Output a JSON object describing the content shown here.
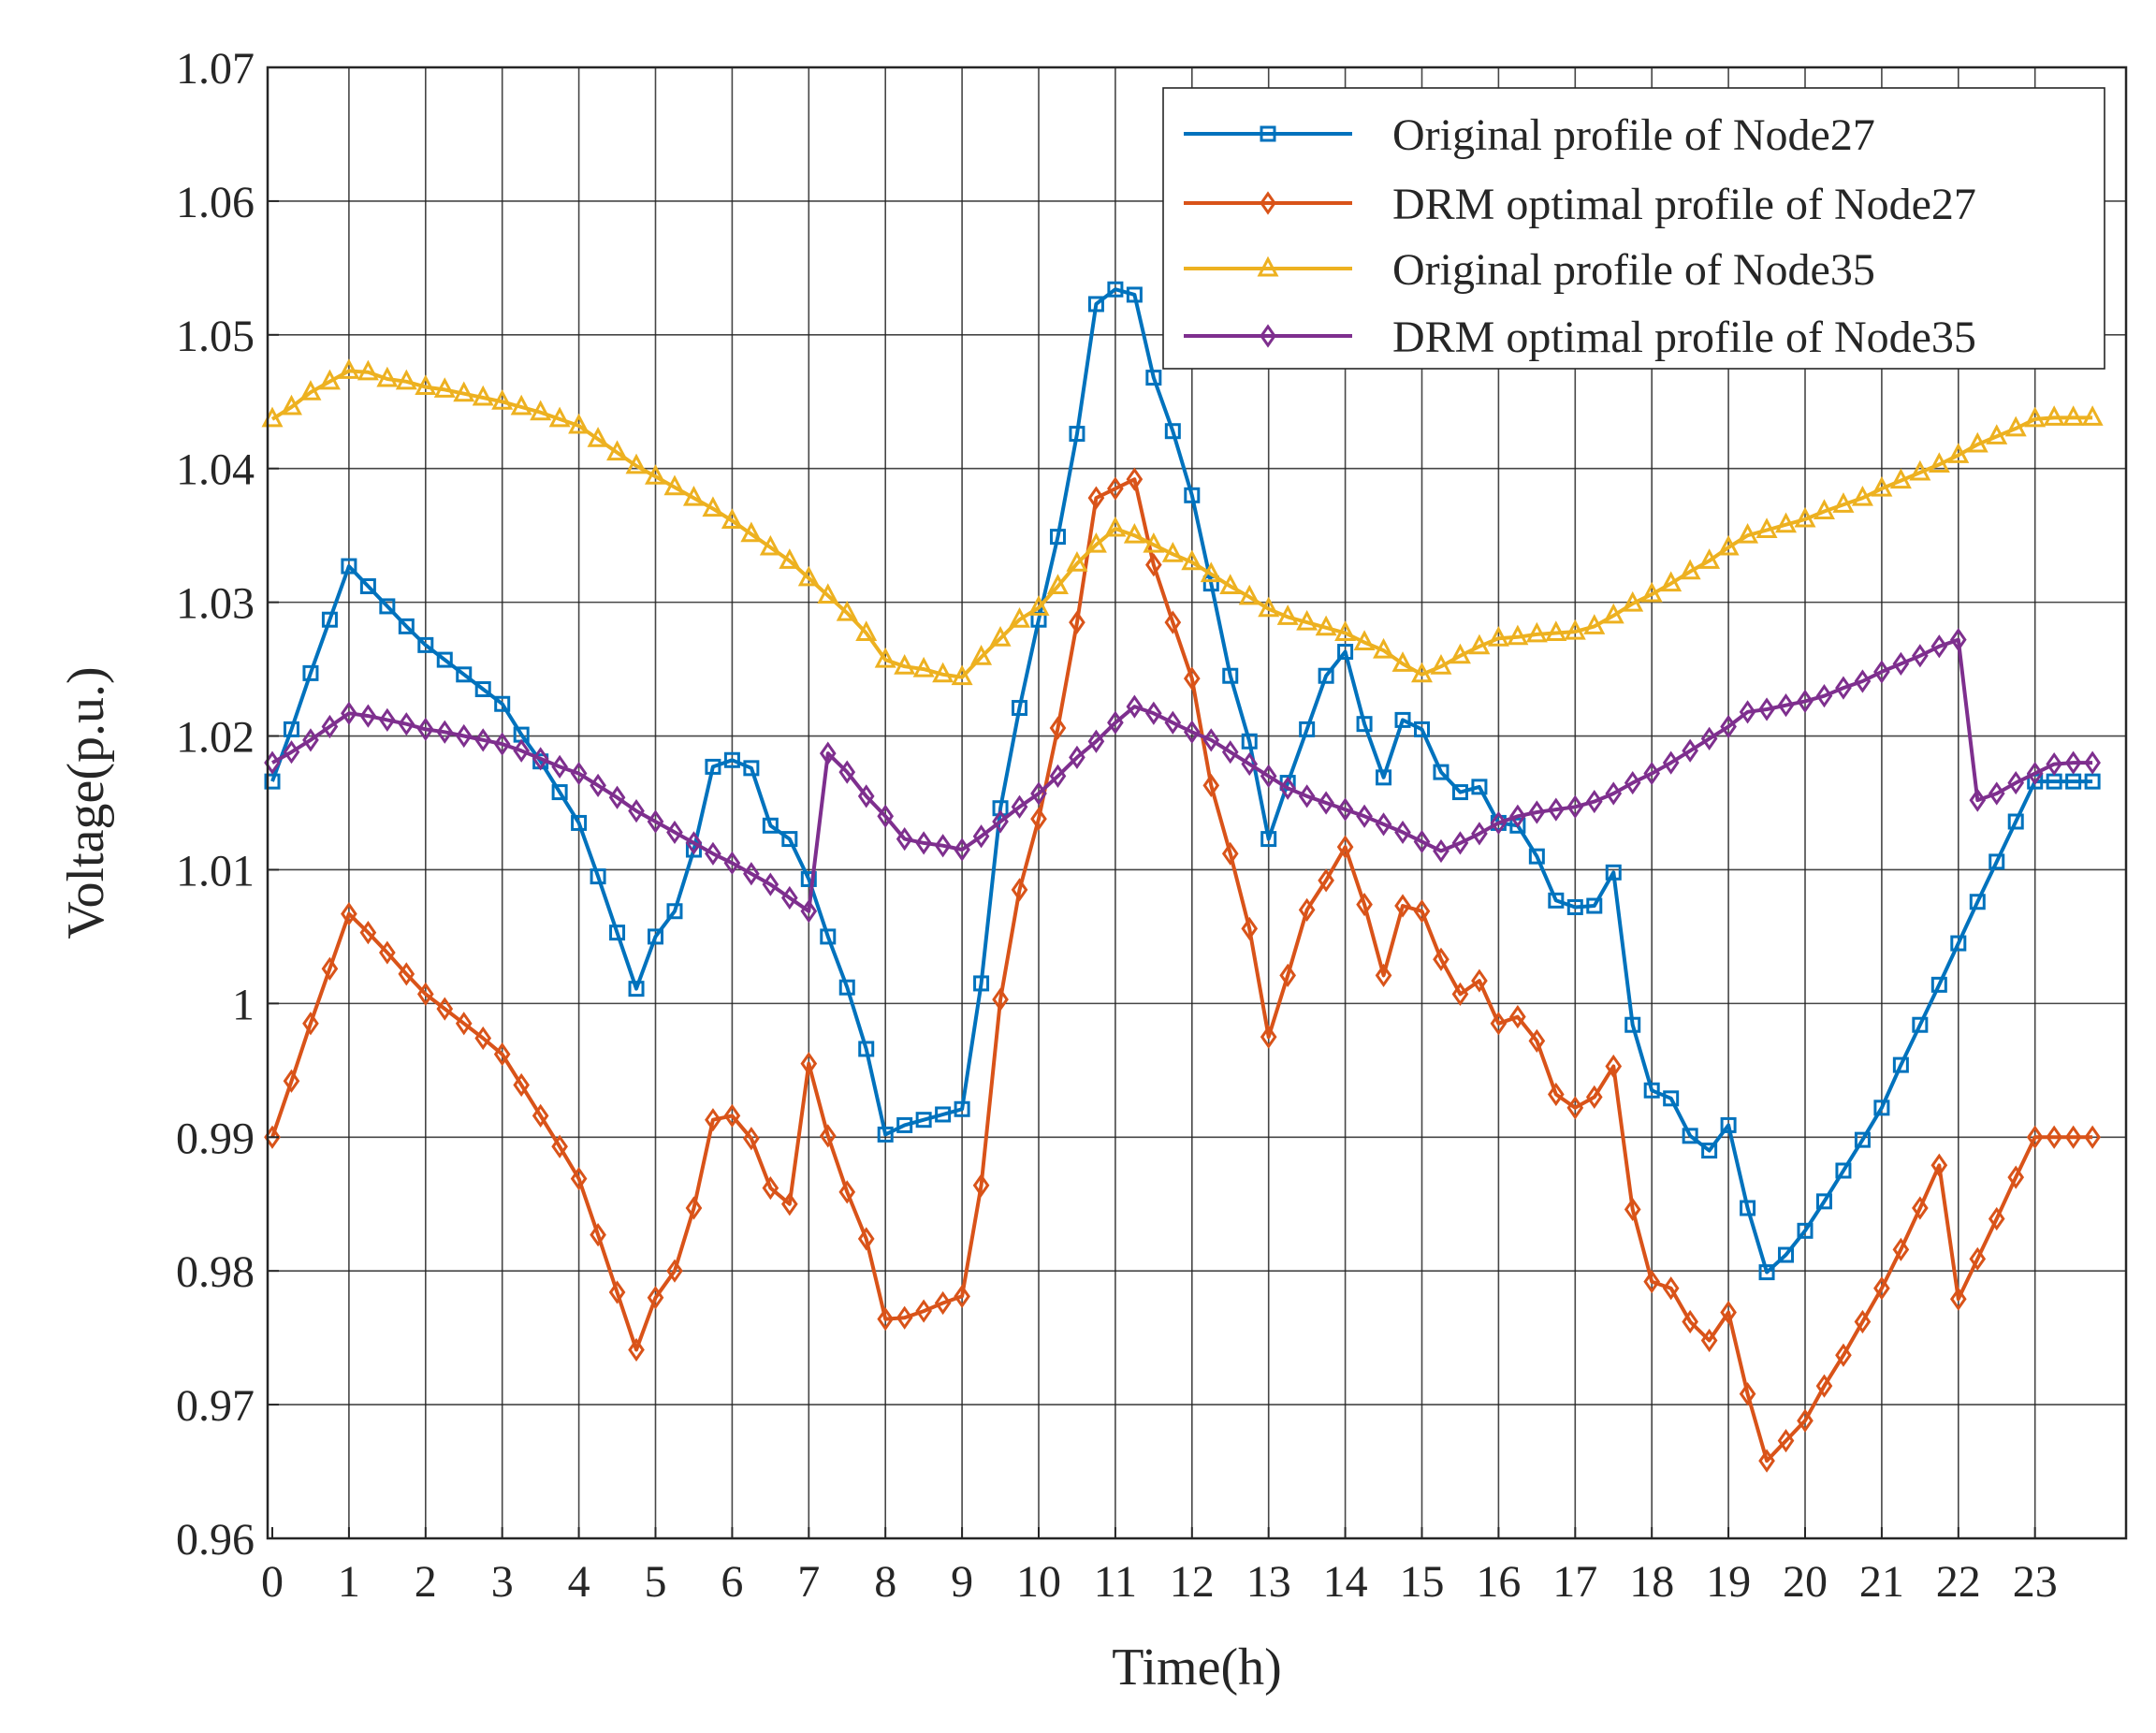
{
  "chart_data": {
    "type": "line",
    "title": "",
    "xlabel": "Time(h)",
    "ylabel": "Voltage(p.u.)",
    "xlim": [
      0,
      23.75
    ],
    "ylim": [
      0.96,
      1.07
    ],
    "grid": true,
    "legend_position": "top-right",
    "x_ticks": [
      0,
      1,
      2,
      3,
      4,
      5,
      6,
      7,
      8,
      9,
      10,
      11,
      12,
      13,
      14,
      15,
      16,
      17,
      18,
      19,
      20,
      21,
      22,
      23
    ],
    "x_tick_labels": [
      "0",
      "1",
      "2",
      "3",
      "4",
      "5",
      "6",
      "7",
      "8",
      "9",
      "10",
      "11",
      "12",
      "13",
      "14",
      "15",
      "16",
      "17",
      "18",
      "19",
      "20",
      "21",
      "22",
      "23"
    ],
    "y_ticks": [
      0.96,
      0.97,
      0.98,
      0.99,
      1.0,
      1.01,
      1.02,
      1.03,
      1.04,
      1.05,
      1.06,
      1.07
    ],
    "y_tick_labels": [
      "0.96",
      "0.97",
      "0.98",
      "0.99",
      "1",
      "1.01",
      "1.02",
      "1.03",
      "1.04",
      "1.05",
      "1.06",
      "1.07"
    ],
    "x_start": 0,
    "x_step": 0.25,
    "series": [
      {
        "name": "Original profile of Node27",
        "color": "#0072BD",
        "marker": "square",
        "values": [
          1.0166,
          1.0205,
          1.0247,
          1.0287,
          1.0327,
          1.0312,
          1.0297,
          1.0282,
          1.0268,
          1.0257,
          1.0246,
          1.0235,
          1.0224,
          1.0201,
          1.0181,
          1.0158,
          1.0135,
          1.0095,
          1.0053,
          1.0011,
          1.005,
          1.0069,
          1.0115,
          1.0177,
          1.0182,
          1.0176,
          1.0133,
          1.0123,
          1.0093,
          1.005,
          1.0012,
          0.9966,
          0.9902,
          0.9909,
          0.9913,
          0.9917,
          0.9921,
          1.0015,
          1.0146,
          1.0221,
          1.0287,
          1.0349,
          1.0426,
          1.0523,
          1.0534,
          1.053,
          1.0468,
          1.0428,
          1.038,
          1.0314,
          1.0245,
          1.0196,
          1.0123,
          1.0165,
          1.0205,
          1.0245,
          1.0263,
          1.0209,
          1.0169,
          1.0212,
          1.0205,
          1.0173,
          1.0158,
          1.0162,
          1.0135,
          1.0133,
          1.011,
          1.0077,
          1.0072,
          1.0073,
          1.0098,
          0.9984,
          0.9935,
          0.9929,
          0.9901,
          0.989,
          0.9909,
          0.9847,
          0.9799,
          0.9812,
          0.983,
          0.9852,
          0.9875,
          0.9898,
          0.9922,
          0.9954,
          0.9984,
          1.0014,
          1.0045,
          1.0076,
          1.0106,
          1.0136,
          1.0166,
          1.0166,
          1.0166,
          1.0166
        ]
      },
      {
        "name": "DRM optimal profile of Node27",
        "color": "#D95319",
        "marker": "diamond",
        "values": [
          0.99,
          0.9942,
          0.9985,
          1.0026,
          1.0067,
          1.0053,
          1.0038,
          1.0022,
          1.0007,
          0.9996,
          0.9985,
          0.9974,
          0.9962,
          0.9939,
          0.9916,
          0.9893,
          0.9869,
          0.9827,
          0.9784,
          0.9741,
          0.978,
          0.98,
          0.9847,
          0.9913,
          0.9916,
          0.9899,
          0.9862,
          0.985,
          0.9955,
          0.9901,
          0.9859,
          0.9824,
          0.9764,
          0.9765,
          0.977,
          0.9776,
          0.9781,
          0.9864,
          1.0003,
          1.0085,
          1.0138,
          1.0206,
          1.0285,
          1.0378,
          1.0385,
          1.0392,
          1.0328,
          1.0285,
          1.0243,
          1.0163,
          1.0112,
          1.0056,
          0.9975,
          1.0021,
          1.007,
          1.0092,
          1.0117,
          1.0074,
          1.0021,
          1.0073,
          1.0069,
          1.0033,
          1.0007,
          1.0017,
          0.9985,
          0.999,
          0.9972,
          0.9932,
          0.9922,
          0.993,
          0.9953,
          0.9846,
          0.9792,
          0.9787,
          0.9762,
          0.9748,
          0.9769,
          0.9708,
          0.9658,
          0.9673,
          0.9688,
          0.9714,
          0.9737,
          0.9762,
          0.9787,
          0.9816,
          0.9847,
          0.9879,
          0.9779,
          0.9809,
          0.9839,
          0.987,
          0.99,
          0.99,
          0.99,
          0.99
        ]
      },
      {
        "name": "Original profile of Node35",
        "color": "#EDB120",
        "marker": "triangle",
        "values": [
          1.0437,
          1.0446,
          1.0457,
          1.0465,
          1.0473,
          1.0472,
          1.0467,
          1.0465,
          1.0461,
          1.0459,
          1.0456,
          1.0453,
          1.045,
          1.0446,
          1.0442,
          1.0437,
          1.0432,
          1.0422,
          1.0412,
          1.0402,
          1.0394,
          1.0386,
          1.0378,
          1.037,
          1.0361,
          1.0351,
          1.0341,
          1.0331,
          1.0318,
          1.0305,
          1.0292,
          1.0277,
          1.0257,
          1.0252,
          1.025,
          1.0246,
          1.0244,
          1.0259,
          1.0273,
          1.0287,
          1.0296,
          1.0312,
          1.0329,
          1.0343,
          1.0355,
          1.035,
          1.0343,
          1.0336,
          1.033,
          1.0321,
          1.0312,
          1.0304,
          1.0295,
          1.0289,
          1.0285,
          1.0281,
          1.0277,
          1.027,
          1.0264,
          1.0254,
          1.0246,
          1.0252,
          1.026,
          1.0267,
          1.0273,
          1.0274,
          1.0276,
          1.0277,
          1.0278,
          1.0282,
          1.029,
          1.0299,
          1.0306,
          1.0314,
          1.0323,
          1.0331,
          1.0341,
          1.035,
          1.0354,
          1.0358,
          1.0362,
          1.0368,
          1.0373,
          1.0378,
          1.0385,
          1.0391,
          1.0397,
          1.0403,
          1.041,
          1.0418,
          1.0424,
          1.043,
          1.0437,
          1.0438,
          1.0438,
          1.0438
        ]
      },
      {
        "name": "DRM optimal profile of Node35",
        "color": "#7E2F8E",
        "marker": "diamond",
        "values": [
          1.018,
          1.0188,
          1.0197,
          1.0207,
          1.0217,
          1.0215,
          1.0212,
          1.0209,
          1.0205,
          1.0203,
          1.02,
          1.0197,
          1.0194,
          1.0189,
          1.0183,
          1.0177,
          1.0172,
          1.0163,
          1.0154,
          1.0144,
          1.0136,
          1.0128,
          1.012,
          1.0112,
          1.0105,
          1.0097,
          1.0089,
          1.0079,
          1.0069,
          1.0187,
          1.0173,
          1.0155,
          1.014,
          1.0123,
          1.012,
          1.0118,
          1.0115,
          1.0125,
          1.0136,
          1.0147,
          1.0157,
          1.017,
          1.0184,
          1.0196,
          1.021,
          1.0222,
          1.0217,
          1.021,
          1.0203,
          1.0197,
          1.0188,
          1.0179,
          1.017,
          1.0161,
          1.0155,
          1.015,
          1.0145,
          1.014,
          1.0134,
          1.0128,
          1.0121,
          1.0114,
          1.012,
          1.0127,
          1.0135,
          1.014,
          1.0143,
          1.0145,
          1.0147,
          1.0151,
          1.0157,
          1.0165,
          1.0172,
          1.018,
          1.0189,
          1.0198,
          1.0207,
          1.0218,
          1.022,
          1.0223,
          1.0226,
          1.023,
          1.0236,
          1.0241,
          1.0248,
          1.0254,
          1.026,
          1.0267,
          1.0272,
          1.0152,
          1.0157,
          1.0165,
          1.0172,
          1.0179,
          1.018,
          1.018
        ]
      }
    ]
  }
}
